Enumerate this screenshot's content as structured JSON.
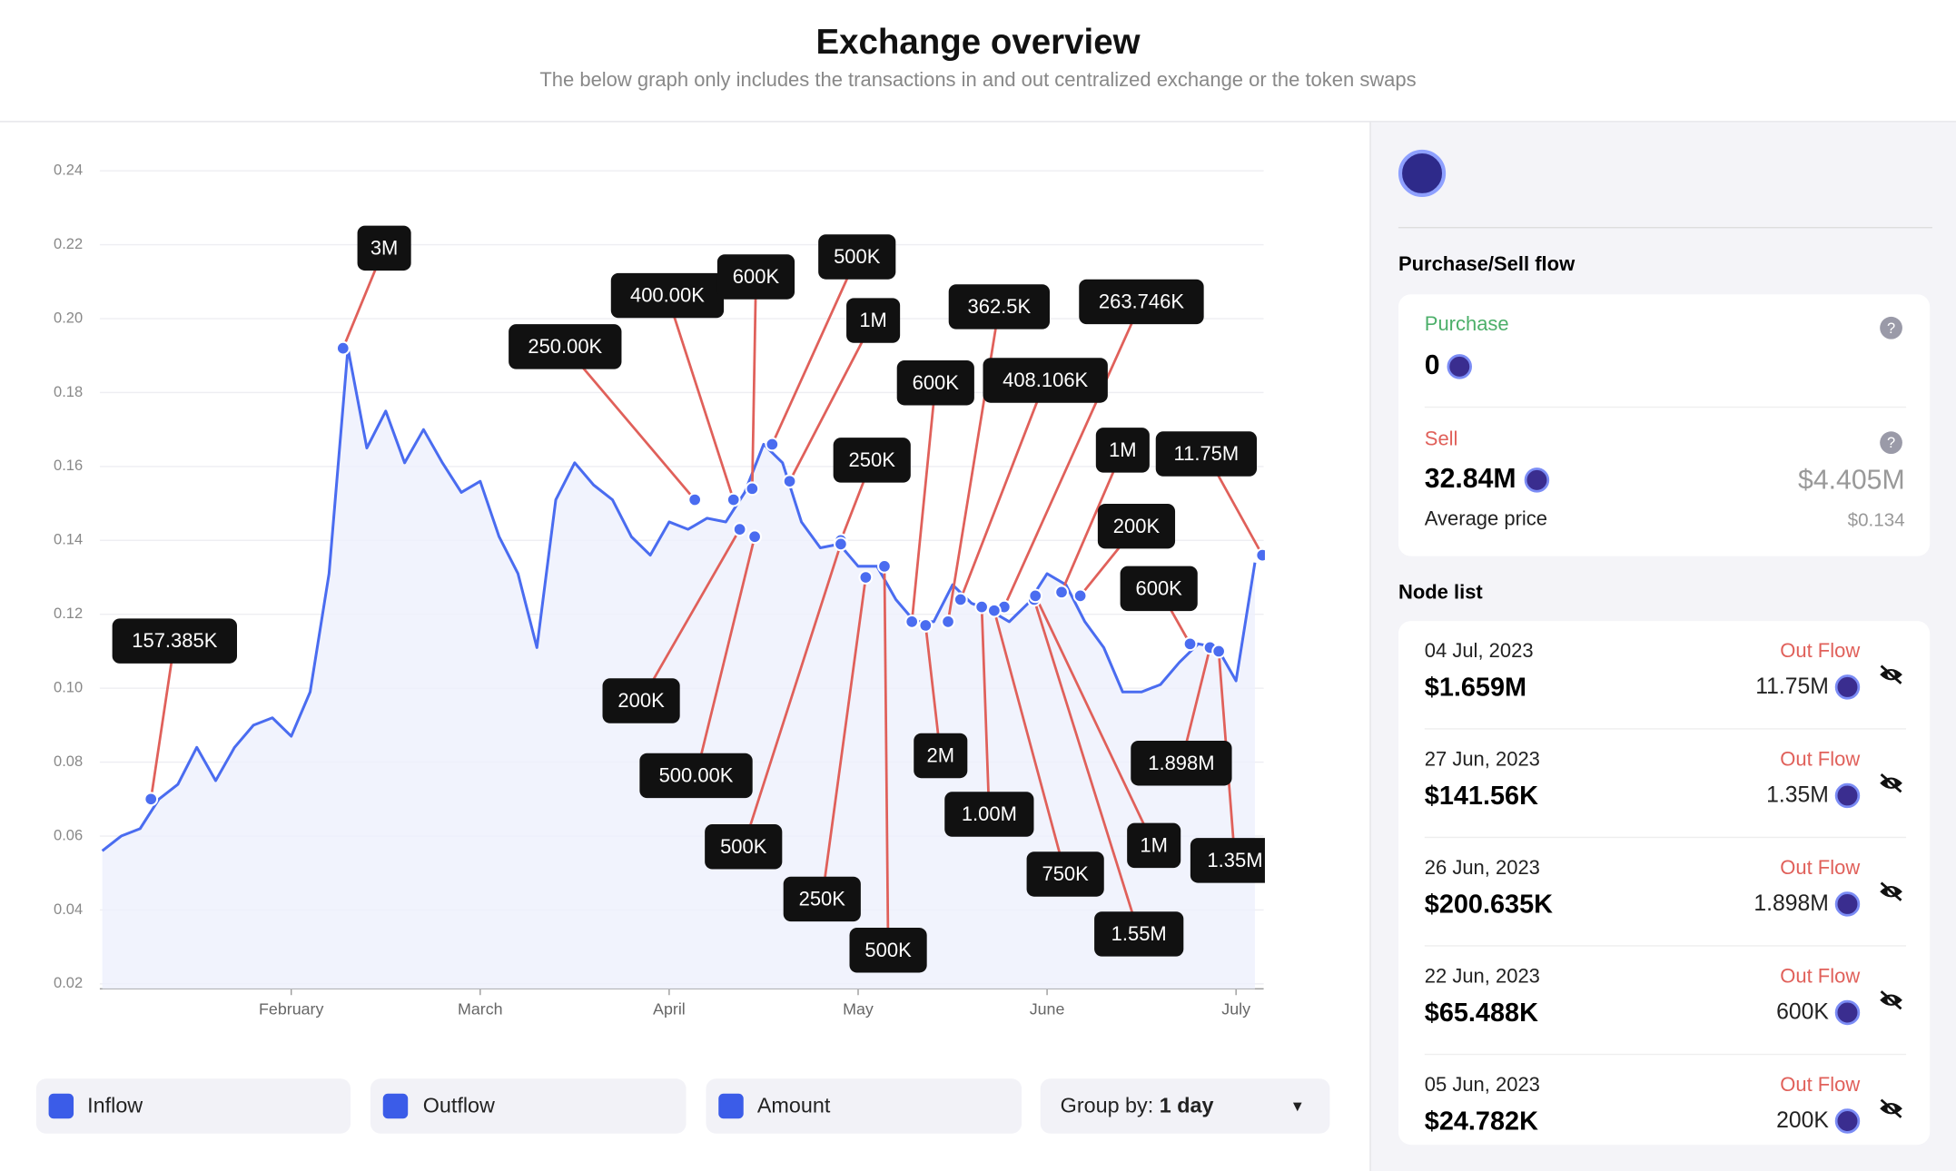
{
  "header": {
    "title": "Exchange overview",
    "subtitle": "The below graph only includes the transactions in and out centralized exchange or the token swaps"
  },
  "chart_data": {
    "type": "line",
    "categories": [
      null,
      null,
      null,
      null,
      null,
      null,
      null,
      null,
      null,
      null,
      "February",
      null,
      null,
      null,
      null,
      null,
      null,
      null,
      null,
      null,
      "March",
      null,
      null,
      null,
      null,
      null,
      null,
      null,
      null,
      null,
      "April",
      null,
      null,
      null,
      null,
      null,
      null,
      null,
      null,
      null,
      "May",
      null,
      null,
      null,
      null,
      null,
      null,
      null,
      null,
      null,
      "June",
      null,
      null,
      null,
      null,
      null,
      null,
      null,
      null,
      null,
      "July",
      null
    ],
    "series": [
      {
        "color": "#4a6cf0",
        "values": [
          0.056,
          0.06,
          0.062,
          0.07,
          0.074,
          0.084,
          0.075,
          0.084,
          0.09,
          0.092,
          0.087,
          0.099,
          0.131,
          0.192,
          0.165,
          0.175,
          0.161,
          0.17,
          0.161,
          0.153,
          0.156,
          0.141,
          0.131,
          0.111,
          0.151,
          0.161,
          0.155,
          0.151,
          0.141,
          0.136,
          0.145,
          0.143,
          0.146,
          0.145,
          0.153,
          0.166,
          0.161,
          0.145,
          0.138,
          0.139,
          0.133,
          0.133,
          0.124,
          0.118,
          0.118,
          0.128,
          0.123,
          0.121,
          0.118,
          0.123,
          0.131,
          0.128,
          0.118,
          0.111,
          0.099,
          0.099,
          0.101,
          0.107,
          0.112,
          0.111,
          0.102,
          0.134
        ]
      }
    ],
    "ylim": [
      0.02,
      0.24
    ],
    "yticks": [
      0.02,
      0.04,
      0.06,
      0.08,
      {
        "value": 0.1,
        "label": "0.10"
      },
      0.12,
      0.14,
      0.16,
      0.18,
      {
        "value": 0.2,
        "label": "0.20"
      },
      0.22,
      0.24
    ],
    "grid": true,
    "annotations": [
      {
        "label": "157.385K",
        "y": 0.07
      },
      {
        "label": "3M",
        "y": 0.192
      },
      {
        "label": "250.00K",
        "y": 0.151
      },
      {
        "label": "400.00K",
        "y": 0.151
      },
      {
        "label": "600K",
        "y": 0.154
      },
      {
        "label": "500K",
        "y": 0.166
      },
      {
        "label": "1M",
        "y": 0.156
      },
      {
        "label": "200K",
        "y": 0.143
      },
      {
        "label": "500.00K",
        "y": 0.141
      },
      {
        "label": "250K",
        "y": 0.14
      },
      {
        "label": "600K",
        "y": 0.118
      },
      {
        "label": "362.5K",
        "y": 0.118
      },
      {
        "label": "408.106K",
        "y": 0.124
      },
      {
        "label": "263.746K",
        "y": 0.122
      },
      {
        "label": "1M",
        "y": 0.126
      },
      {
        "label": "200K",
        "y": 0.125
      },
      {
        "label": "600K",
        "y": 0.112
      },
      {
        "label": "11.75M",
        "y": 0.136
      },
      {
        "label": "500K",
        "y": 0.139
      },
      {
        "label": "250K",
        "y": 0.13
      },
      {
        "label": "500K",
        "y": 0.133
      },
      {
        "label": "2M",
        "y": 0.117
      },
      {
        "label": "1.00M",
        "y": 0.122
      },
      {
        "label": "750K",
        "y": 0.121
      },
      {
        "label": "1.55M",
        "y": 0.124
      },
      {
        "label": "1M",
        "y": 0.125
      },
      {
        "label": "1.898M",
        "y": 0.111
      },
      {
        "label": "1.35M",
        "y": 0.11
      }
    ]
  },
  "controls": {
    "checkboxes": [
      "Inflow",
      "Outflow",
      "Amount"
    ],
    "group_by_label": "Group by:",
    "group_by_value": "1 day"
  },
  "sidebar": {
    "section_title": "Purchase/Sell flow",
    "purchase": {
      "label": "Purchase",
      "amount": "0"
    },
    "sell": {
      "label": "Sell",
      "amount": "32.84M",
      "usd": "$4.405M",
      "avg_label": "Average price",
      "avg": "$0.134"
    },
    "node_list_title": "Node list",
    "nodes": [
      {
        "date": "04 Jul, 2023",
        "usd": "$1.659M",
        "flow": "Out Flow",
        "amount": "11.75M"
      },
      {
        "date": "27 Jun, 2023",
        "usd": "$141.56K",
        "flow": "Out Flow",
        "amount": "1.35M"
      },
      {
        "date": "26 Jun, 2023",
        "usd": "$200.635K",
        "flow": "Out Flow",
        "amount": "1.898M"
      },
      {
        "date": "22 Jun, 2023",
        "usd": "$65.488K",
        "flow": "Out Flow",
        "amount": "600K"
      },
      {
        "date": "05 Jun, 2023",
        "usd": "$24.782K",
        "flow": "Out Flow",
        "amount": "200K"
      }
    ]
  }
}
